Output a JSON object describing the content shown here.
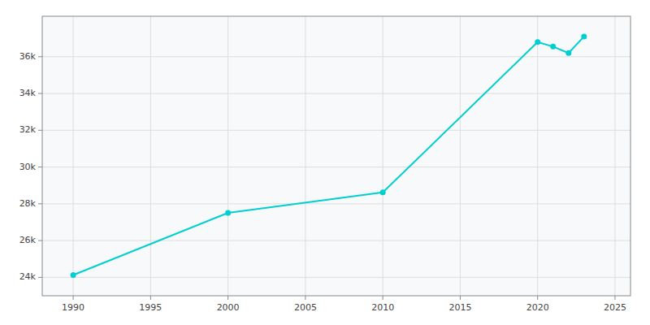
{
  "chart_data": {
    "type": "line",
    "x": [
      1990,
      2000,
      2010,
      2020,
      2021,
      2022,
      2023
    ],
    "values": [
      24127,
      27508,
      28619,
      36800,
      36550,
      36200,
      37100
    ],
    "color": "#00CED1",
    "marker": "circle",
    "line_style": "solid",
    "xlim": [
      1988,
      2026
    ],
    "ylim": [
      23000,
      38200
    ],
    "xticks": [
      1990,
      1995,
      2000,
      2005,
      2010,
      2015,
      2020,
      2025
    ],
    "yticks": [
      {
        "value": 24000,
        "label": "24k"
      },
      {
        "value": 26000,
        "label": "26k"
      },
      {
        "value": 28000,
        "label": "28k"
      },
      {
        "value": 30000,
        "label": "30k"
      },
      {
        "value": 32000,
        "label": "32k"
      },
      {
        "value": 34000,
        "label": "34k"
      },
      {
        "value": 36000,
        "label": "36k"
      }
    ],
    "grid": true
  }
}
